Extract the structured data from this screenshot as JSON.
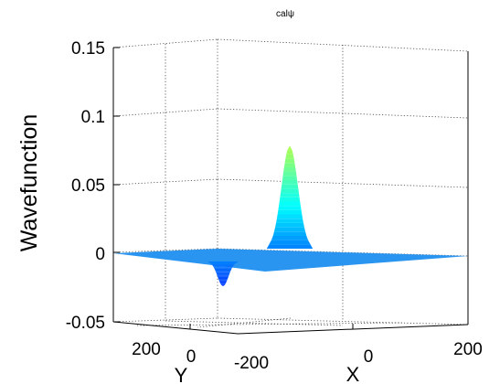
{
  "chart_data": {
    "type": "surface",
    "title": "calψ",
    "zlabel": "Wavefunction",
    "xlabel": "X",
    "ylabel": "Y",
    "xlim": [
      -200,
      200
    ],
    "ylim": [
      -200,
      200
    ],
    "zlim": [
      -0.05,
      0.15
    ],
    "xticks": [
      "-200",
      "0",
      "200"
    ],
    "yticks": [
      "200",
      "0"
    ],
    "zticks": [
      "0.15",
      "0.1",
      "0.05",
      "0",
      "-0.05"
    ],
    "grid": true,
    "colormap": "jet",
    "baseline_color": "#2a95f0",
    "peaks": [
      {
        "kind": "positive",
        "peak_value": 0.075
      },
      {
        "kind": "negative",
        "peak_value": -0.018
      }
    ]
  }
}
